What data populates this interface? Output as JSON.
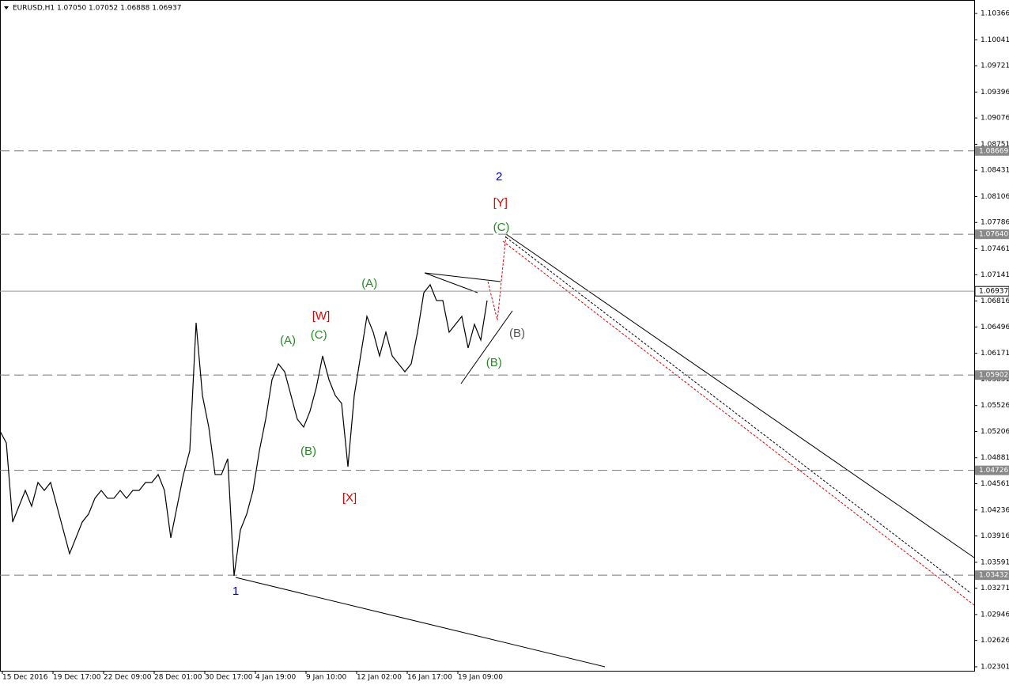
{
  "chart_data": {
    "type": "line",
    "title": "EURUSD,H1  1.07050 1.07052 1.06888 1.06937",
    "x": [
      0,
      1,
      2,
      3,
      4,
      5,
      6,
      7,
      8,
      9,
      10,
      11,
      12,
      13,
      14,
      15,
      16,
      17,
      18,
      19,
      20,
      21,
      22,
      23,
      24,
      25,
      26,
      27,
      28,
      29,
      30,
      31,
      32,
      33,
      34,
      35,
      36,
      37,
      38,
      39,
      40,
      41,
      42,
      43,
      44,
      45,
      46,
      47,
      48,
      49,
      50,
      51,
      52,
      53,
      54,
      55,
      56,
      57,
      58,
      59,
      60,
      61,
      62,
      63,
      64,
      65,
      66,
      67,
      68,
      69,
      70,
      71,
      72,
      73,
      74,
      75,
      76,
      77
    ],
    "values": [
      1.05211,
      1.05064,
      1.04088,
      1.04283,
      1.04478,
      1.04283,
      1.04576,
      1.04478,
      1.04576,
      1.04283,
      1.0399,
      1.03697,
      1.03893,
      1.04088,
      1.04186,
      1.04381,
      1.04478,
      1.04381,
      1.04381,
      1.04478,
      1.04381,
      1.04478,
      1.04478,
      1.04576,
      1.04576,
      1.04674,
      1.04478,
      1.03893,
      1.04283,
      1.04674,
      1.04967,
      1.06548,
      1.0565,
      1.0526,
      1.04674,
      1.04674,
      1.04869,
      1.03424,
      1.0399,
      1.04186,
      1.04478,
      1.04967,
      1.05357,
      1.05845,
      1.06041,
      1.05943,
      1.0565,
      1.05357,
      1.0526,
      1.05455,
      1.05748,
      1.06138,
      1.05845,
      1.0565,
      1.05552,
      1.04771,
      1.0565,
      1.06138,
      1.06626,
      1.06431,
      1.06138,
      1.06431,
      1.06138,
      1.06041,
      1.05943,
      1.06041,
      1.06431,
      1.06919,
      1.07017,
      1.06822,
      1.06822,
      1.06431,
      1.06529,
      1.06626,
      1.06236,
      1.06529,
      1.06334,
      1.06822
    ],
    "color": "#000000",
    "xlim": [
      0,
      154
    ],
    "ylim": [
      1.02252,
      1.10532
    ],
    "xticks": [
      {
        "value": 0,
        "label": "15 Dec 2016"
      },
      {
        "value": 8,
        "label": "19 Dec 17:00"
      },
      {
        "value": 16,
        "label": "22 Dec 09:00"
      },
      {
        "value": 24,
        "label": "28 Dec 01:00"
      },
      {
        "value": 32,
        "label": "30 Dec 17:00"
      },
      {
        "value": 40,
        "label": "4 Jan 19:00"
      },
      {
        "value": 48,
        "label": "9 Jan 10:00"
      },
      {
        "value": 56,
        "label": "12 Jan 02:00"
      },
      {
        "value": 64,
        "label": "16 Jan 17:00"
      },
      {
        "value": 72,
        "label": "19 Jan 09:00"
      }
    ],
    "yticks": [
      1.10366,
      1.10041,
      1.09721,
      1.09396,
      1.09076,
      1.08751,
      1.08431,
      1.08106,
      1.07786,
      1.07461,
      1.07141,
      1.06816,
      1.06496,
      1.06171,
      1.05851,
      1.05526,
      1.05206,
      1.04881,
      1.04561,
      1.04236,
      1.03916,
      1.03591,
      1.03271,
      1.02946,
      1.02626,
      1.02301
    ],
    "hlines": [
      {
        "value": 1.08669,
        "label": "1.08669"
      },
      {
        "value": 1.0764,
        "label": "1.07640"
      },
      {
        "value": 1.05902,
        "label": "1.05902"
      },
      {
        "value": 1.04726,
        "label": "1.04726"
      },
      {
        "value": 1.03432,
        "label": "1.03432"
      }
    ],
    "current_price": {
      "value": 1.06937,
      "label": "1.06937"
    },
    "annotations": [
      {
        "text": "2",
        "color": "#0000cc",
        "x": 78.9,
        "y": 1.08345
      },
      {
        "text": "[Y]",
        "color": "#e00000",
        "x": 79.1,
        "y": 1.08023
      },
      {
        "text": "(C)",
        "color": "#228b22",
        "x": 79.25,
        "y": 1.0772
      },
      {
        "text": "(A)",
        "color": "#228b22",
        "x": 58.4,
        "y": 1.07027
      },
      {
        "text": "[W]",
        "color": "#e00000",
        "x": 50.75,
        "y": 1.06627
      },
      {
        "text": "(C)",
        "color": "#228b22",
        "x": 50.4,
        "y": 1.06392
      },
      {
        "text": "(A)",
        "color": "#228b22",
        "x": 45.5,
        "y": 1.06324
      },
      {
        "text": "(B)",
        "color": "#555555",
        "x": 81.75,
        "y": 1.06412
      },
      {
        "text": "(B)",
        "color": "#228b22",
        "x": 78.1,
        "y": 1.0605
      },
      {
        "text": "(B)",
        "color": "#228b22",
        "x": 48.75,
        "y": 1.04957
      },
      {
        "text": "[X]",
        "color": "#e00000",
        "x": 55.25,
        "y": 1.04381
      },
      {
        "text": "1",
        "color": "#0000cc",
        "x": 37.25,
        "y": 1.03229
      }
    ]
  }
}
